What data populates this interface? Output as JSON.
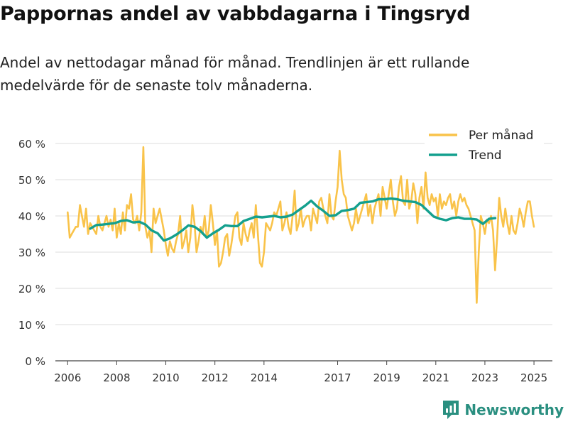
{
  "header": {
    "title": "Pappornas andel av vabbdagarna i Tingsryd",
    "subtitle": "Andel av nettodagar månad för månad. Trendlinjen är ett rullande medelvärde för de senaste tolv månaderna."
  },
  "brand": {
    "name": "Newsworthy",
    "color": "#2a8f80"
  },
  "chart_data": {
    "type": "line",
    "title": "Pappornas andel av vabbdagarna i Tingsryd",
    "xlabel": "",
    "ylabel": "",
    "ylim": [
      0,
      60
    ],
    "xlim": [
      2005.5,
      2025.75
    ],
    "y_ticks": [
      0,
      10,
      20,
      30,
      40,
      50,
      60
    ],
    "y_tick_labels": [
      "0 %",
      "10 %",
      "20 %",
      "30 %",
      "40 %",
      "50 %",
      "60 %"
    ],
    "x_ticks": [
      2006,
      2008,
      2010,
      2012,
      2014,
      2017,
      2019,
      2021,
      2023,
      2025
    ],
    "x_tick_labels": [
      "2006",
      "2008",
      "2010",
      "2012",
      "2014",
      "2017",
      "2019",
      "2021",
      "2023",
      "2025"
    ],
    "grid": true,
    "legend_position": "top-right",
    "series": [
      {
        "name": "Per månad",
        "color": "#f9c34a",
        "x_start": 2006.0,
        "step": 0.08333,
        "values": [
          41,
          34,
          35,
          36,
          37,
          37,
          43,
          40,
          37,
          42,
          35,
          38,
          37,
          36,
          35,
          40,
          37,
          36,
          38,
          40,
          37,
          39,
          36,
          42,
          34,
          38,
          35,
          41,
          36,
          43,
          42,
          46,
          39,
          38,
          40,
          36,
          41,
          59,
          37,
          34,
          36,
          30,
          42,
          38,
          40,
          42,
          39,
          36,
          32,
          29,
          33,
          31,
          30,
          33,
          35,
          40,
          31,
          33,
          36,
          30,
          34,
          43,
          38,
          30,
          33,
          37,
          35,
          40,
          34,
          36,
          43,
          38,
          32,
          36,
          26,
          27,
          30,
          34,
          35,
          29,
          32,
          36,
          40,
          41,
          34,
          32,
          38,
          35,
          33,
          36,
          38,
          34,
          43,
          35,
          27,
          26,
          30,
          38,
          37,
          36,
          38,
          41,
          40,
          42,
          44,
          36,
          38,
          41,
          37,
          35,
          40,
          47,
          36,
          38,
          42,
          37,
          39,
          40,
          40,
          36,
          42,
          40,
          38,
          44,
          45,
          42,
          40,
          38,
          46,
          40,
          39,
          44,
          48,
          58,
          50,
          46,
          45,
          40,
          38,
          36,
          38,
          42,
          38,
          40,
          42,
          44,
          46,
          40,
          43,
          38,
          42,
          44,
          46,
          40,
          48,
          45,
          42,
          46,
          50,
          44,
          40,
          42,
          48,
          51,
          44,
          43,
          50,
          42,
          44,
          49,
          46,
          38,
          45,
          48,
          42,
          52,
          45,
          43,
          46,
          44,
          45,
          40,
          46,
          42,
          44,
          43,
          45,
          46,
          42,
          44,
          40,
          44,
          46,
          44,
          45,
          43,
          42,
          40,
          38,
          36,
          16,
          30,
          40,
          38,
          35,
          39,
          38,
          40,
          36,
          25,
          34,
          45,
          40,
          37,
          42,
          38,
          35,
          40,
          36,
          35,
          38,
          42,
          40,
          37,
          41,
          44,
          44,
          40,
          37
        ],
        "trend": false
      },
      {
        "name": "Trend",
        "color": "#14a08e",
        "x_start": 2006.92,
        "step": 0.25,
        "values": [
          36.5,
          37.5,
          37.6,
          37.8,
          38.0,
          38.6,
          38.8,
          38.2,
          38.4,
          37.6,
          36.0,
          35.2,
          33.2,
          33.8,
          34.8,
          36.0,
          37.4,
          37.0,
          35.8,
          34.0,
          35.2,
          36.2,
          37.4,
          37.2,
          37.2,
          38.6,
          39.2,
          39.8,
          39.6,
          39.8,
          40.0,
          39.6,
          39.8,
          40.4,
          41.6,
          42.8,
          44.2,
          42.6,
          41.4,
          40.0,
          40.2,
          41.4,
          41.6,
          42.0,
          43.6,
          43.8,
          44.0,
          44.6,
          44.6,
          44.8,
          44.6,
          44.2,
          44.0,
          43.8,
          43.0,
          41.4,
          39.8,
          39.2,
          38.8,
          39.4,
          39.6,
          39.2,
          39.2,
          39.0,
          37.8,
          39.2,
          39.4
        ]
      }
    ]
  }
}
